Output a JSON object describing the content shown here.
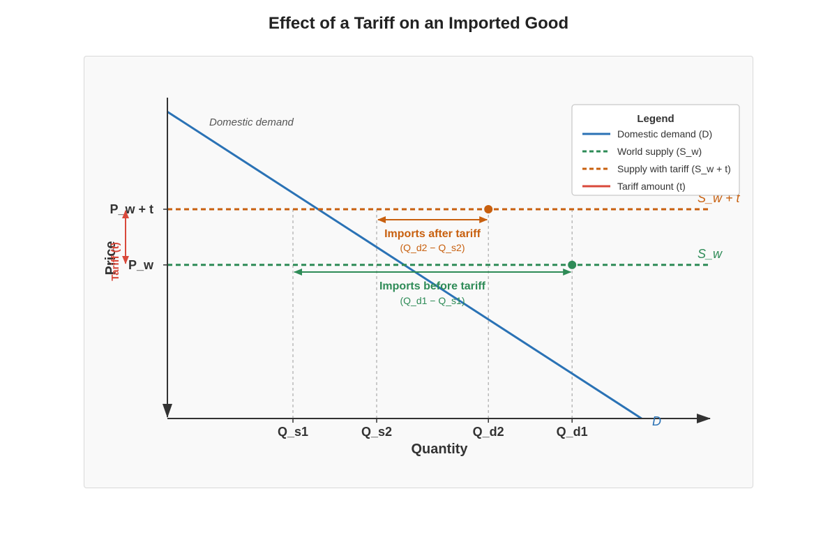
{
  "title": "Effect of a Tariff on an Imported Good",
  "chart_data": {
    "type": "line",
    "xlabel": "Quantity",
    "ylabel": "Price",
    "grid": false,
    "legend_placement": "top-right",
    "x_ticks": [
      {
        "label": "Q_s1",
        "x": 3
      },
      {
        "label": "Q_s2",
        "x": 5
      },
      {
        "label": "Q_d2",
        "x": 7.67
      },
      {
        "label": "Q_d1",
        "x": 9.67
      }
    ],
    "y_ticks": [
      {
        "label": "P_w + t",
        "y": 5
      },
      {
        "label": "P_w",
        "y": 3.67
      }
    ],
    "series": [
      {
        "name": "Domestic demand (D)",
        "label": "D",
        "annotation": "Domestic demand",
        "color": "#2a72b5",
        "style": "solid",
        "points": [
          [
            0,
            7.33
          ],
          [
            11.33,
            0
          ]
        ]
      },
      {
        "name": "World supply (S_w)",
        "label": "S_w",
        "color": "#2e8b57",
        "style": "dashed",
        "points": [
          [
            0,
            3.67
          ],
          [
            12.93,
            3.67
          ]
        ]
      },
      {
        "name": "Supply with tariff (S_w + t)",
        "label": "S_w + t",
        "color": "#c8600f",
        "style": "dashed",
        "points": [
          [
            0,
            5
          ],
          [
            12.93,
            5
          ]
        ]
      }
    ],
    "tariff": {
      "name": "Tariff amount (t)",
      "label": "Tariff (t)",
      "color": "#d9493b",
      "from": 5,
      "to": 3.67
    },
    "points": [
      {
        "x": 7.67,
        "y": 5,
        "color": "#c8600f"
      },
      {
        "x": 9.67,
        "y": 3.67,
        "color": "#2e8b57"
      }
    ],
    "imports": [
      {
        "label": "Imports after tariff",
        "sublabel": "(Q_d2 − Q_s2)",
        "from": 5,
        "to": 7.67,
        "y": 5,
        "color": "#c8600f"
      },
      {
        "label": "Imports before tariff",
        "sublabel": "(Q_d1 − Q_s1)",
        "from": 3,
        "to": 9.67,
        "y": 3.67,
        "color": "#2e8b57"
      }
    ],
    "legend": {
      "title": "Legend",
      "items": [
        {
          "label": "Domestic demand (D)",
          "color": "#2a72b5",
          "style": "solid"
        },
        {
          "label": "World supply (S_w)",
          "color": "#2e8b57",
          "style": "dashed"
        },
        {
          "label": "Supply with tariff (S_w + t)",
          "color": "#c8600f",
          "style": "dashed"
        },
        {
          "label": "Tariff amount (t)",
          "color": "#d9493b",
          "style": "solid"
        }
      ]
    }
  }
}
